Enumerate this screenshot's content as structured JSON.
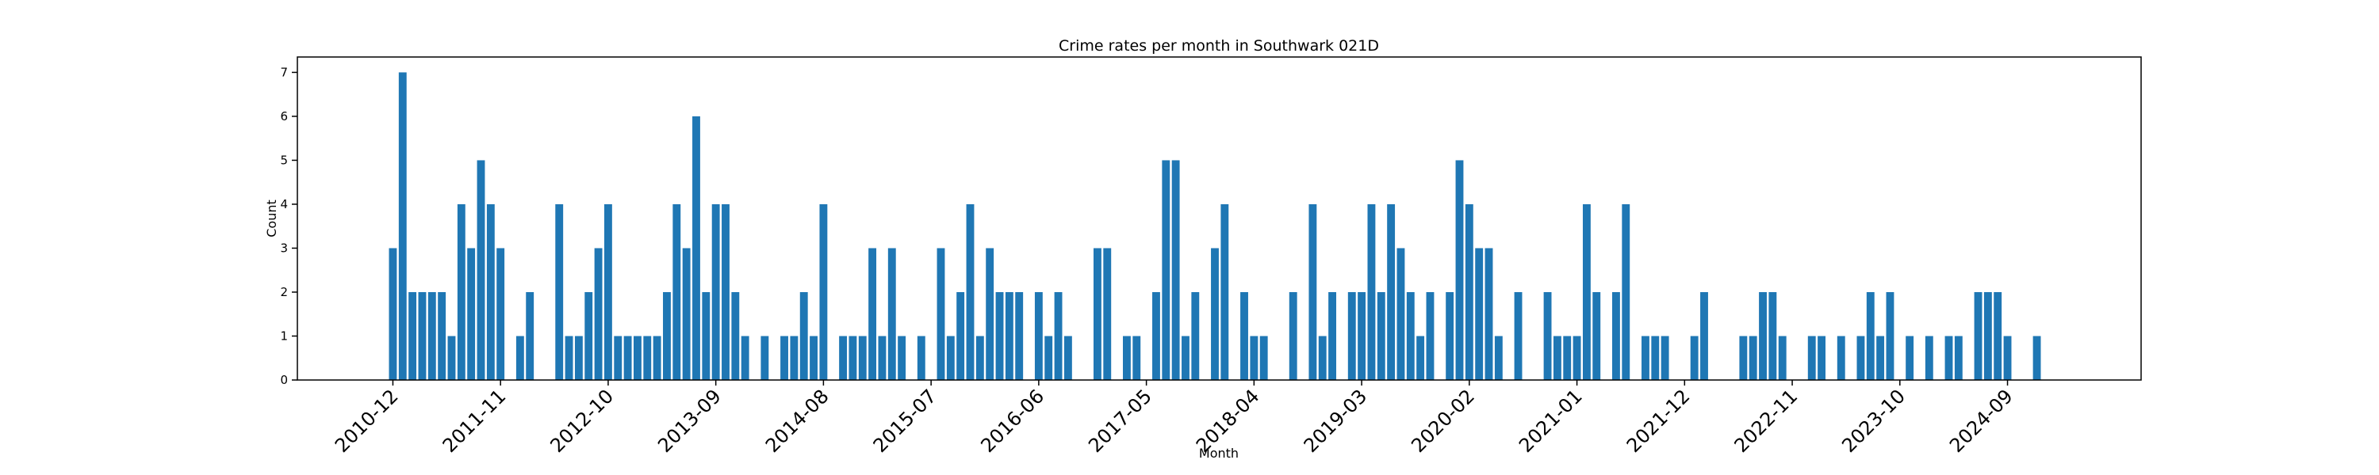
{
  "chart_data": {
    "type": "bar",
    "title": "Crime rates per month in Southwark 021D",
    "x_label": "Month",
    "y_label": "Count",
    "color": "#1f77b4",
    "categories": [
      "2010-12",
      null,
      null,
      null,
      null,
      null,
      null,
      null,
      null,
      null,
      null,
      "2011-11",
      null,
      null,
      null,
      null,
      null,
      null,
      null,
      null,
      null,
      null,
      "2012-10",
      null,
      null,
      null,
      null,
      null,
      null,
      null,
      null,
      null,
      null,
      "2013-09",
      null,
      null,
      null,
      null,
      null,
      null,
      null,
      null,
      null,
      null,
      "2014-08",
      null,
      null,
      null,
      null,
      null,
      null,
      null,
      null,
      null,
      null,
      "2015-07",
      null,
      null,
      null,
      null,
      null,
      null,
      null,
      null,
      null,
      null,
      "2016-06",
      null,
      null,
      null,
      null,
      null,
      null,
      null,
      null,
      null,
      null,
      "2017-05",
      null,
      null,
      null,
      null,
      null,
      null,
      null,
      null,
      null,
      null,
      "2018-04",
      null,
      null,
      null,
      null,
      null,
      null,
      null,
      null,
      null,
      null,
      "2019-03",
      null,
      null,
      null,
      null,
      null,
      null,
      null,
      null,
      null,
      null,
      "2020-02",
      null,
      null,
      null,
      null,
      null,
      null,
      null,
      null,
      null,
      null,
      "2021-01",
      null,
      null,
      null,
      null,
      null,
      null,
      null,
      null,
      null,
      null,
      "2021-12",
      null,
      null,
      null,
      null,
      null,
      null,
      null,
      null,
      null,
      null,
      "2022-11",
      null,
      null,
      null,
      null,
      null,
      null,
      null,
      null,
      null,
      null,
      "2023-10",
      null,
      null,
      null,
      null,
      null,
      null,
      null,
      null,
      null,
      null,
      "2024-09",
      null,
      null,
      null
    ],
    "values": [
      3,
      7,
      2,
      2,
      2,
      2,
      1,
      4,
      3,
      5,
      4,
      3,
      0,
      1,
      2,
      0,
      0,
      4,
      1,
      1,
      2,
      3,
      4,
      1,
      1,
      1,
      1,
      1,
      2,
      4,
      3,
      6,
      2,
      4,
      4,
      2,
      1,
      0,
      1,
      0,
      1,
      1,
      2,
      1,
      4,
      0,
      1,
      1,
      1,
      3,
      1,
      3,
      1,
      0,
      1,
      0,
      3,
      1,
      2,
      4,
      1,
      3,
      2,
      2,
      2,
      0,
      2,
      1,
      2,
      1,
      0,
      0,
      3,
      3,
      0,
      1,
      1,
      0,
      2,
      5,
      5,
      1,
      2,
      0,
      3,
      4,
      0,
      2,
      1,
      1,
      0,
      0,
      2,
      0,
      4,
      1,
      2,
      0,
      2,
      2,
      4,
      2,
      4,
      3,
      2,
      1,
      2,
      0,
      2,
      5,
      4,
      3,
      3,
      1,
      0,
      2,
      0,
      0,
      2,
      1,
      1,
      1,
      4,
      2,
      0,
      2,
      4,
      0,
      1,
      1,
      1,
      0,
      0,
      1,
      2,
      0,
      0,
      0,
      1,
      1,
      2,
      2,
      1,
      0,
      0,
      1,
      1,
      0,
      1,
      0,
      1,
      2,
      1,
      2,
      0,
      1,
      0,
      1,
      0,
      1,
      1,
      0,
      2,
      2,
      2,
      1,
      0,
      0,
      1
    ],
    "ylim": [
      0,
      7.35
    ],
    "yticks": [
      0,
      1,
      2,
      3,
      4,
      5,
      6,
      7
    ]
  }
}
